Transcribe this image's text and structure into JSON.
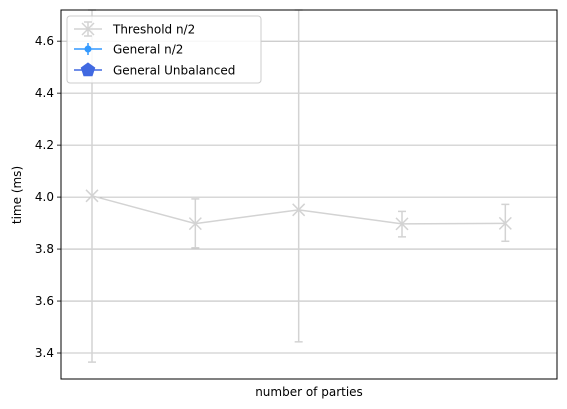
{
  "chart_data": {
    "type": "line",
    "title": "",
    "xlabel": "number of parties",
    "ylabel": "time (ms)",
    "x_tick_labels_shown": false,
    "x_values": [
      1,
      2,
      3,
      4,
      5
    ],
    "xlim": [
      0.7,
      5.5
    ],
    "ylim": [
      3.3,
      4.72
    ],
    "y_ticks": [
      3.4,
      3.6,
      3.8,
      4.0,
      4.2,
      4.4,
      4.6
    ],
    "y_tick_labels": [
      "3.4",
      "3.6",
      "3.8",
      "4.0",
      "4.2",
      "4.4",
      "4.6"
    ],
    "grid": "horizontal",
    "legend_position": "top-left",
    "series": [
      {
        "name": "Threshold n/2",
        "color": "#d3d3d3",
        "marker": "x",
        "points": [
          {
            "x": 1,
            "y": 4.005,
            "err_low": 3.365,
            "err_high": 4.72
          },
          {
            "x": 2,
            "y": 3.898,
            "err_low": 3.805,
            "err_high": 3.993
          },
          {
            "x": 3,
            "y": 3.951,
            "err_low": 3.443,
            "err_high": 4.72
          },
          {
            "x": 4,
            "y": 3.897,
            "err_low": 3.847,
            "err_high": 3.945
          },
          {
            "x": 5,
            "y": 3.899,
            "err_low": 3.83,
            "err_high": 3.972
          }
        ]
      },
      {
        "name": "General n/2",
        "color": "#3399ff",
        "marker": "o",
        "points": []
      },
      {
        "name": "General Unbalanced",
        "color": "#4169e1",
        "marker": "pentagon",
        "points": []
      }
    ]
  }
}
